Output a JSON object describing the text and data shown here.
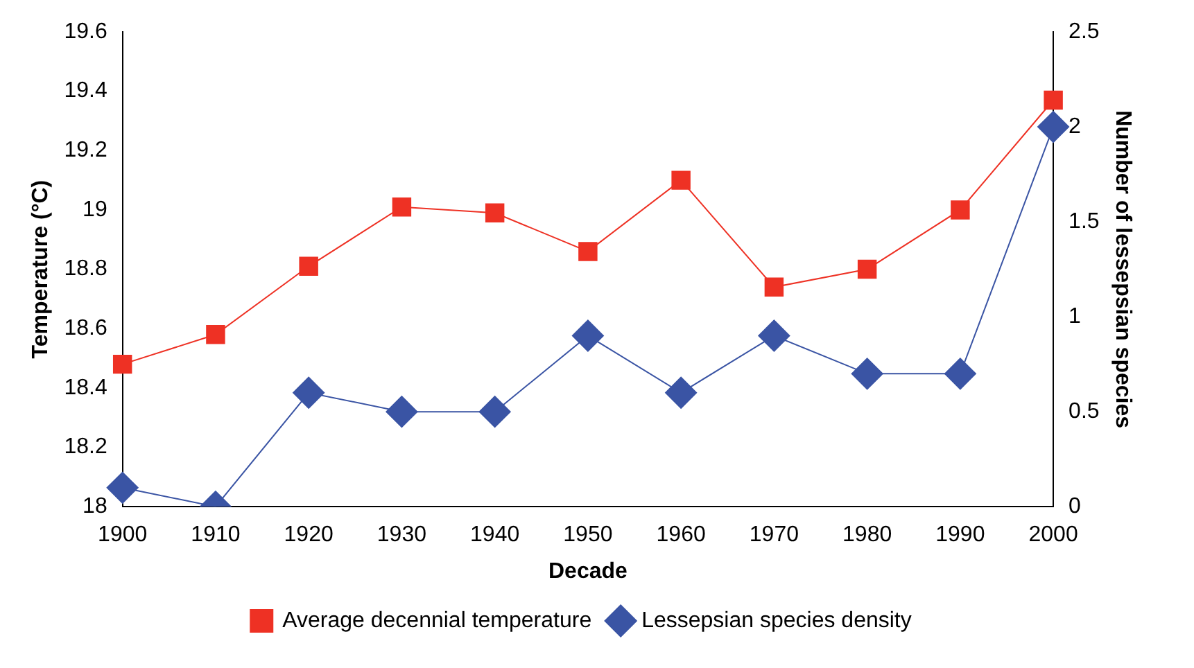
{
  "chart_data": {
    "type": "line",
    "xlabel": "Decade",
    "ylabel": "Temperature (°C)",
    "y2label": "Number of lessepsian species",
    "categories": [
      "1900",
      "1910",
      "1920",
      "1930",
      "1940",
      "1950",
      "1960",
      "1970",
      "1980",
      "1990",
      "2000"
    ],
    "series": [
      {
        "name": "Average decennial temperature",
        "color": "#ee3124",
        "marker": "square",
        "values": [
          18.48,
          18.58,
          18.81,
          19.01,
          18.99,
          18.86,
          19.1,
          18.74,
          18.8,
          19.0,
          19.37
        ]
      },
      {
        "name": "Lessepsian species density",
        "color": "#3a54a4",
        "marker": "diamond",
        "axis": "y2",
        "values": [
          0.1,
          0,
          0.6,
          0.5,
          0.5,
          0.9,
          0.6,
          0.9,
          0.7,
          0.7,
          2.0
        ]
      }
    ],
    "ylim": [
      18,
      19.6
    ],
    "yticks": [
      18,
      18.2,
      18.4,
      18.6,
      18.8,
      19,
      19.2,
      19.4,
      19.6
    ],
    "y2lim": [
      0,
      2.5
    ],
    "y2ticks": [
      0,
      0.5,
      1,
      1.5,
      2,
      2.5
    ],
    "grid": false,
    "legend": "bottom"
  }
}
